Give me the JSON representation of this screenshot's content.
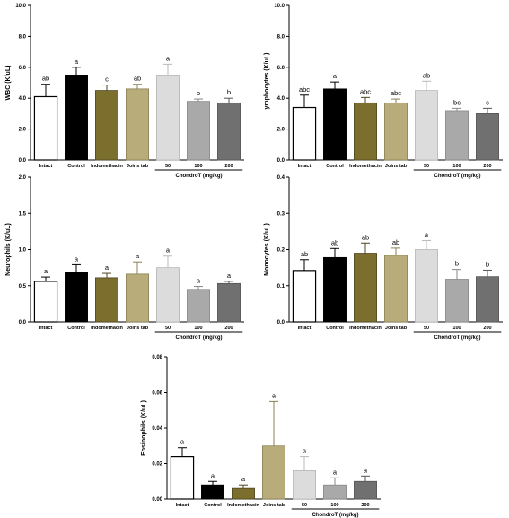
{
  "figure": {
    "group_label": "ChondroT (mg/kg)",
    "colors": {
      "Intact": "#ffffff",
      "Control": "#000000",
      "Indomethacin": "#7c6f2e",
      "Joins tab": "#b8ad7a",
      "50": "#dcdcdc",
      "100": "#a9a9a9",
      "200": "#707070"
    }
  },
  "chart_data": [
    {
      "type": "bar",
      "ylabel": "WBC (K/uL)",
      "ylim": [
        0,
        10
      ],
      "yticks": [
        "0.0",
        "2.0",
        "4.0",
        "6.0",
        "8.0",
        "10.0"
      ],
      "categories": [
        "Intact",
        "Control",
        "Indomethacin",
        "Joins tab",
        "50",
        "100",
        "200"
      ],
      "values": [
        4.1,
        5.5,
        4.5,
        4.6,
        5.5,
        3.8,
        3.7
      ],
      "errors": [
        0.8,
        0.5,
        0.35,
        0.3,
        0.7,
        0.15,
        0.3
      ],
      "significance": [
        "ab",
        "a",
        "c",
        "ab",
        "a",
        "b",
        "b"
      ],
      "group_label": "ChondroT (mg/kg)"
    },
    {
      "type": "bar",
      "ylabel": "Lymphocytes (K/uL)",
      "ylim": [
        0,
        10
      ],
      "yticks": [
        "0.0",
        "2.0",
        "4.0",
        "6.0",
        "8.0",
        "10.0"
      ],
      "categories": [
        "Intact",
        "Control",
        "Indomethacin",
        "Joins tab",
        "50",
        "100",
        "200"
      ],
      "values": [
        3.4,
        4.6,
        3.7,
        3.7,
        4.5,
        3.2,
        3.0
      ],
      "errors": [
        0.8,
        0.45,
        0.35,
        0.25,
        0.6,
        0.15,
        0.35
      ],
      "significance": [
        "abc",
        "a",
        "abc",
        "abc",
        "ab",
        "bc",
        "c"
      ],
      "group_label": "ChondroT (mg/kg)"
    },
    {
      "type": "bar",
      "ylabel": "Neurophils (K/uL)",
      "ylim": [
        0,
        2.0
      ],
      "yticks": [
        "0.0",
        "0.5",
        "1.0",
        "1.5",
        "2.0"
      ],
      "categories": [
        "Intact",
        "Control",
        "Indomethacin",
        "Joins tab",
        "50",
        "100",
        "200"
      ],
      "values": [
        0.56,
        0.68,
        0.61,
        0.66,
        0.75,
        0.45,
        0.53
      ],
      "errors": [
        0.06,
        0.11,
        0.06,
        0.17,
        0.16,
        0.04,
        0.03
      ],
      "significance": [
        "a",
        "a",
        "a",
        "a",
        "a",
        "a",
        "a"
      ],
      "group_label": "ChondroT (mg/kg)"
    },
    {
      "type": "bar",
      "ylabel": "Monocytes (K/uL)",
      "ylim": [
        0,
        0.4
      ],
      "yticks": [
        "0.0",
        "0.1",
        "0.2",
        "0.3",
        "0.4"
      ],
      "categories": [
        "Intact",
        "Control",
        "Indomethacin",
        "Joins tab",
        "50",
        "100",
        "200"
      ],
      "values": [
        0.142,
        0.178,
        0.19,
        0.184,
        0.2,
        0.118,
        0.125
      ],
      "errors": [
        0.03,
        0.025,
        0.028,
        0.02,
        0.025,
        0.027,
        0.018
      ],
      "significance": [
        "ab",
        "ab",
        "ab",
        "ab",
        "a",
        "b",
        "b"
      ],
      "group_label": "ChondroT (mg/kg)"
    },
    {
      "type": "bar",
      "ylabel": "Eosinophils (K/uL)",
      "ylim": [
        0,
        0.08
      ],
      "yticks": [
        "0.00",
        "0.02",
        "0.04",
        "0.06",
        "0.08"
      ],
      "categories": [
        "Intact",
        "Control",
        "Indomethacin",
        "Joins tab",
        "50",
        "100",
        "200"
      ],
      "values": [
        0.024,
        0.008,
        0.006,
        0.03,
        0.016,
        0.008,
        0.01
      ],
      "errors": [
        0.005,
        0.002,
        0.002,
        0.025,
        0.008,
        0.004,
        0.003
      ],
      "significance": [
        "a",
        "a",
        "a",
        "a",
        "a",
        "a",
        "a"
      ],
      "group_label": "ChondroT (mg/kg)"
    }
  ]
}
